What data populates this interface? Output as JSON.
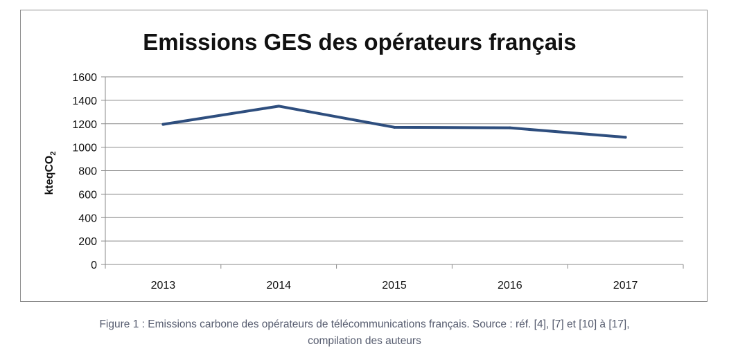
{
  "caption": {
    "line1": "Figure 1 : Emissions carbone des opérateurs de télécommunications français. Source : réf. [4], [7] et [10] à [17],",
    "line2": "compilation des auteurs"
  },
  "chart_data": {
    "type": "line",
    "title": "Emissions GES des opérateurs français",
    "ylabel_main": "kteqCO",
    "ylabel_sub": "2",
    "xlabel": "",
    "categories": [
      "2013",
      "2014",
      "2015",
      "2016",
      "2017"
    ],
    "series": [
      {
        "values": [
          1195,
          1350,
          1170,
          1165,
          1085
        ],
        "color": "#2e4e7e"
      }
    ],
    "ylim": [
      0,
      1600
    ],
    "yticks": [
      0,
      200,
      400,
      600,
      800,
      1000,
      1200,
      1400,
      1600
    ],
    "grid": true,
    "legend": "none"
  }
}
